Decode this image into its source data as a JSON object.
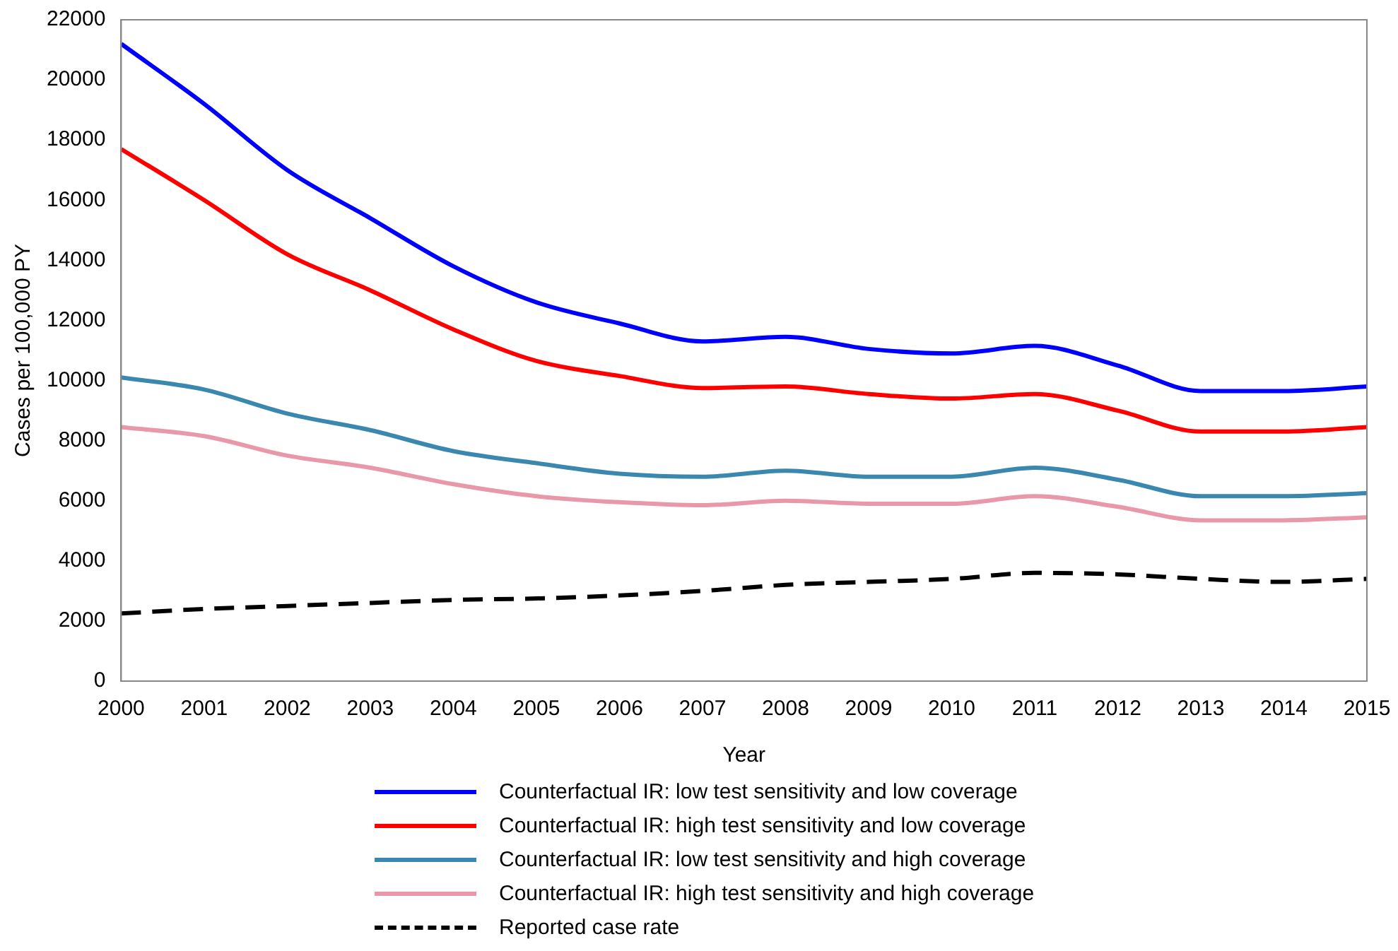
{
  "chart_data": {
    "type": "line",
    "xlabel": "Year",
    "ylabel": "Cases per 100,000 PY",
    "x": [
      2000,
      2001,
      2002,
      2003,
      2004,
      2005,
      2006,
      2007,
      2008,
      2009,
      2010,
      2011,
      2012,
      2013,
      2014,
      2015
    ],
    "xlim": [
      2000,
      2015
    ],
    "xticks": [
      2000,
      2001,
      2002,
      2003,
      2004,
      2005,
      2006,
      2007,
      2008,
      2009,
      2010,
      2011,
      2012,
      2013,
      2014,
      2015
    ],
    "ylim": [
      0,
      22000
    ],
    "yticks": [
      0,
      2000,
      4000,
      6000,
      8000,
      10000,
      12000,
      14000,
      16000,
      18000,
      20000,
      22000
    ],
    "grid": false,
    "legend": "bottom",
    "marker": "none",
    "series": [
      {
        "name": "Counterfactual IR: low test sensitivity and low coverage",
        "color": "#0000ff",
        "line_style": "solid",
        "values": [
          21200,
          19200,
          17000,
          15400,
          13800,
          12600,
          11900,
          11300,
          11450,
          11050,
          10900,
          11150,
          10500,
          9650,
          9650,
          9800
        ]
      },
      {
        "name": "Counterfactual IR: high test sensitivity and low coverage",
        "color": "#ff0000",
        "line_style": "solid",
        "values": [
          17700,
          16000,
          14200,
          13000,
          11700,
          10650,
          10150,
          9750,
          9800,
          9550,
          9400,
          9550,
          9000,
          8300,
          8300,
          8450
        ]
      },
      {
        "name": "Counterfactual IR: low test sensitivity and high coverage",
        "color": "#3a87b0",
        "line_style": "solid",
        "values": [
          10100,
          9700,
          8900,
          8350,
          7650,
          7250,
          6900,
          6800,
          7000,
          6800,
          6800,
          7100,
          6700,
          6150,
          6150,
          6250
        ]
      },
      {
        "name": "Counterfactual IR: high test sensitivity and high coverage",
        "color": "#e898a8",
        "line_style": "solid",
        "values": [
          8450,
          8150,
          7500,
          7100,
          6550,
          6150,
          5950,
          5850,
          6000,
          5900,
          5900,
          6150,
          5800,
          5350,
          5350,
          5450
        ]
      },
      {
        "name": "Reported case rate",
        "color": "#000000",
        "line_style": "dashed",
        "values": [
          2250,
          2400,
          2500,
          2600,
          2700,
          2750,
          2850,
          3000,
          3200,
          3300,
          3400,
          3600,
          3550,
          3400,
          3300,
          3400
        ]
      }
    ]
  }
}
